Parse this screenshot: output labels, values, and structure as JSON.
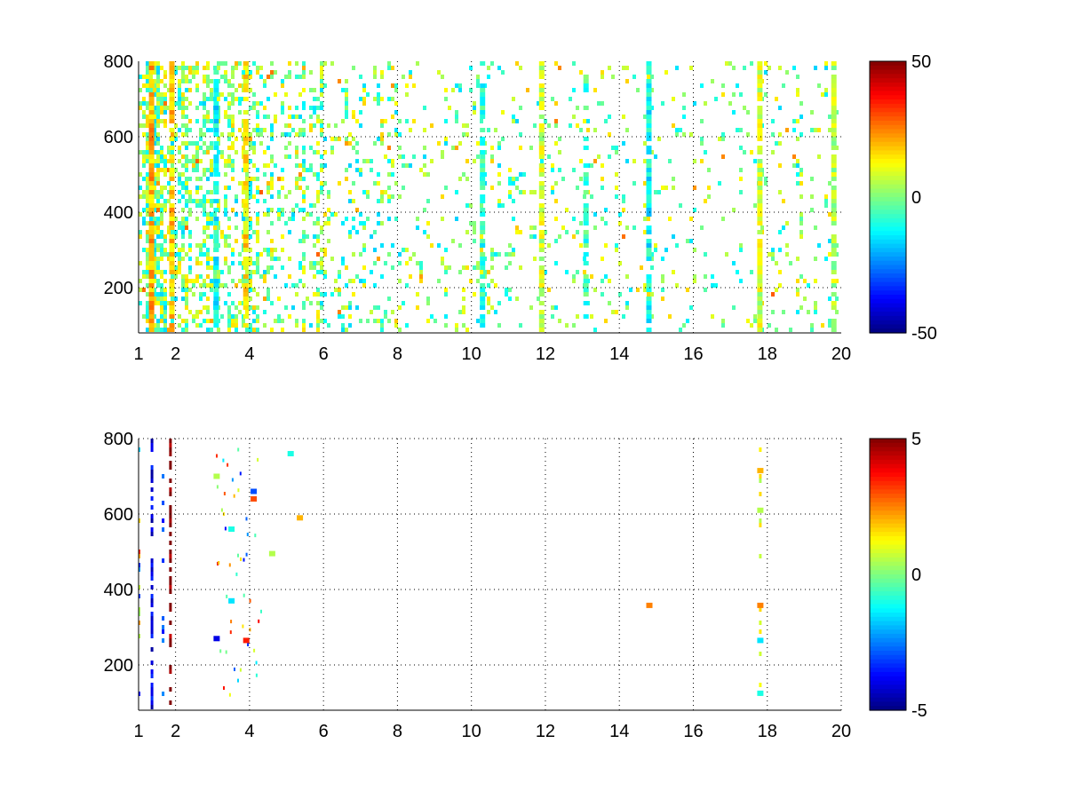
{
  "chart_data": [
    {
      "type": "heatmap",
      "title": "",
      "xlabel": "",
      "ylabel": "",
      "xlim": [
        1,
        20
      ],
      "ylim": [
        80,
        800
      ],
      "xticks": [
        1,
        2,
        4,
        6,
        8,
        10,
        12,
        14,
        16,
        18,
        20
      ],
      "yticks": [
        200,
        400,
        600,
        800
      ],
      "grid": true,
      "grid_style": "dotted",
      "colormap": "jet",
      "clim": [
        -50,
        50
      ],
      "colorbar_ticks": [
        -50,
        0,
        50
      ],
      "sparsity": "dense; density decreasing toward higher x",
      "column_patterns": [
        {
          "x": 1.35,
          "value": 20,
          "fill": 0.9
        },
        {
          "x": 1.9,
          "value": 18,
          "fill": 0.8
        },
        {
          "x": 3.1,
          "value": -12,
          "fill": 0.7
        },
        {
          "x": 3.9,
          "value": 15,
          "fill": 0.8
        },
        {
          "x": 10.3,
          "value": -8,
          "fill": 0.7
        },
        {
          "x": 11.9,
          "value": 8,
          "fill": 0.85
        },
        {
          "x": 13.1,
          "value": -6,
          "fill": 0.5
        },
        {
          "x": 14.8,
          "value": -12,
          "fill": 0.75
        },
        {
          "x": 17.8,
          "value": 8,
          "fill": 0.95
        },
        {
          "x": 19.8,
          "value": 5,
          "fill": 0.9
        }
      ]
    },
    {
      "type": "heatmap",
      "title": "",
      "xlabel": "",
      "ylabel": "",
      "xlim": [
        1,
        20
      ],
      "ylim": [
        80,
        800
      ],
      "xticks": [
        1,
        2,
        4,
        6,
        8,
        10,
        12,
        14,
        16,
        18,
        20
      ],
      "yticks": [
        200,
        400,
        600,
        800
      ],
      "grid": true,
      "grid_style": "dotted",
      "colormap": "jet",
      "clim": [
        -5,
        5
      ],
      "colorbar_ticks": [
        -5,
        0,
        5
      ],
      "sparsity": "very sparse; mostly empty",
      "column_patterns": [
        {
          "x": 1.35,
          "value": -4,
          "fill": 0.6
        },
        {
          "x": 1.85,
          "value": 5,
          "fill": 0.65
        },
        {
          "x": 1.65,
          "value": -3,
          "fill": 0.3
        },
        {
          "x": 17.8,
          "value": 1,
          "fill": 0.15
        }
      ],
      "points": [
        {
          "x": 14.8,
          "y": 358,
          "value": 2.5
        },
        {
          "x": 17.8,
          "y": 358,
          "value": 2.5
        },
        {
          "x": 17.8,
          "y": 610,
          "value": 0.5
        },
        {
          "x": 17.8,
          "y": 715,
          "value": 2
        },
        {
          "x": 17.8,
          "y": 265,
          "value": -1.5
        },
        {
          "x": 17.8,
          "y": 125,
          "value": -1
        },
        {
          "x": 5.35,
          "y": 590,
          "value": 2
        },
        {
          "x": 5.1,
          "y": 760,
          "value": -1
        },
        {
          "x": 4.1,
          "y": 660,
          "value": -3
        },
        {
          "x": 4.1,
          "y": 640,
          "value": 3
        },
        {
          "x": 3.1,
          "y": 700,
          "value": 0.5
        },
        {
          "x": 3.1,
          "y": 270,
          "value": -4
        },
        {
          "x": 3.5,
          "y": 370,
          "value": -1.5
        },
        {
          "x": 3.9,
          "y": 265,
          "value": 3.5
        },
        {
          "x": 4.6,
          "y": 495,
          "value": 0.5
        },
        {
          "x": 3.5,
          "y": 560,
          "value": -1
        }
      ]
    }
  ]
}
